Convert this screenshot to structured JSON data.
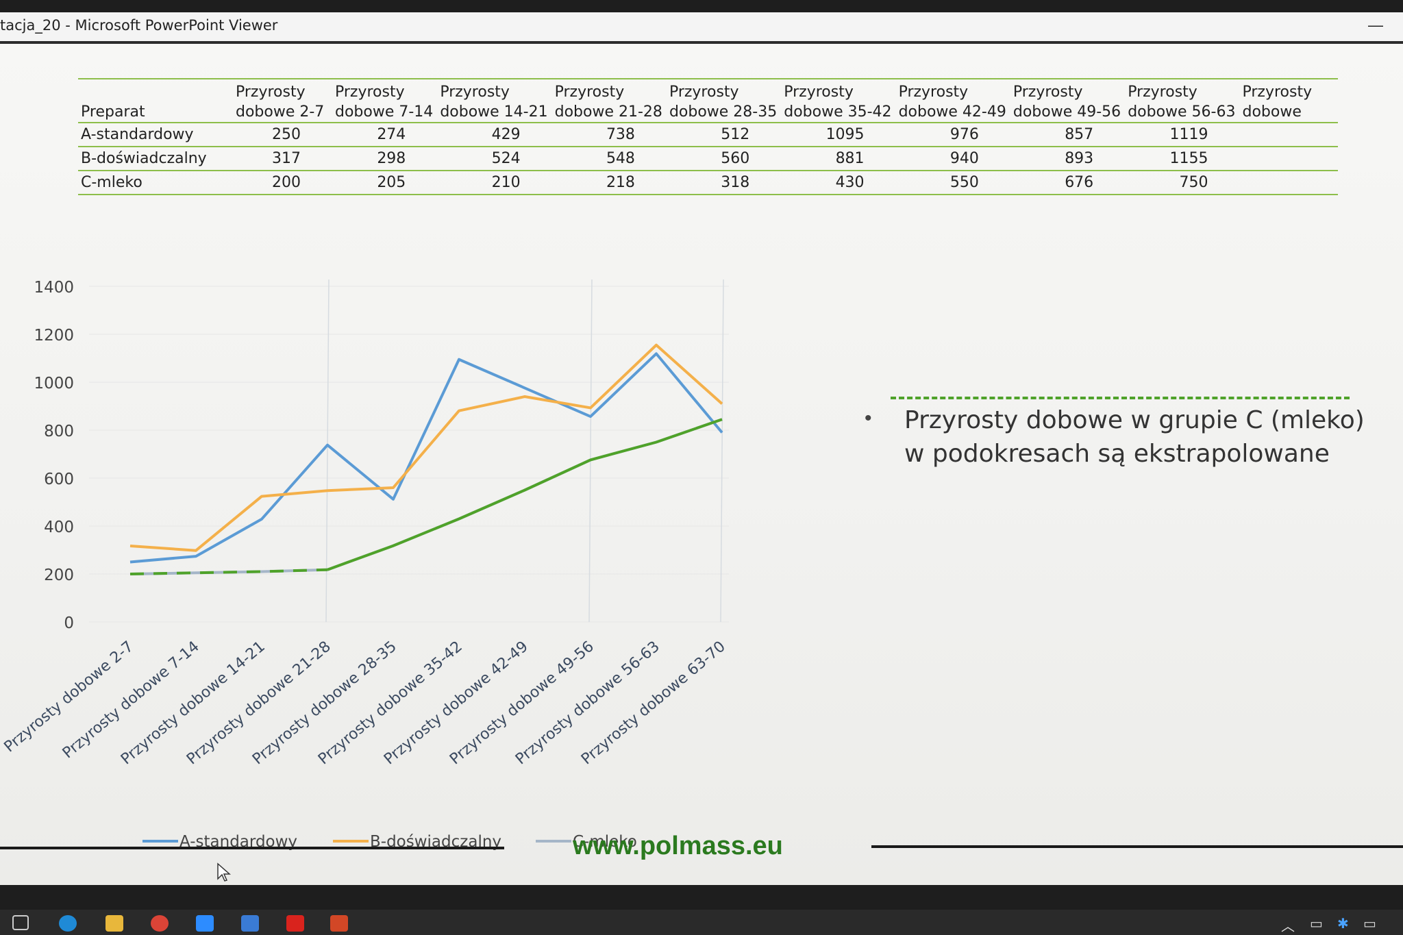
{
  "window": {
    "title": "tacja_20 - Microsoft PowerPoint Viewer",
    "minimize_glyph": "—"
  },
  "table": {
    "header_label": "Preparat",
    "columns": [
      [
        "Przyrosty",
        "dobowe 2-7"
      ],
      [
        "Przyrosty",
        "dobowe 7-14"
      ],
      [
        "Przyrosty",
        "dobowe 14-21"
      ],
      [
        "Przyrosty",
        "dobowe 21-28"
      ],
      [
        "Przyrosty",
        "dobowe 28-35"
      ],
      [
        "Przyrosty",
        "dobowe 35-42"
      ],
      [
        "Przyrosty",
        "dobowe 42-49"
      ],
      [
        "Przyrosty",
        "dobowe 49-56"
      ],
      [
        "Przyrosty",
        "dobowe 56-63"
      ],
      [
        "Przyrosty",
        "dobowe"
      ]
    ],
    "rows": [
      {
        "label": "A-standardowy",
        "values": [
          "250",
          "274",
          "429",
          "738",
          "512",
          "1095",
          "976",
          "857",
          "1119",
          ""
        ]
      },
      {
        "label": "B-doświadczalny",
        "values": [
          "317",
          "298",
          "524",
          "548",
          "560",
          "881",
          "940",
          "893",
          "1155",
          ""
        ]
      },
      {
        "label": "C-mleko",
        "values": [
          "200",
          "205",
          "210",
          "218",
          "318",
          "430",
          "550",
          "676",
          "750",
          ""
        ]
      }
    ]
  },
  "chart_data": {
    "type": "line",
    "categories": [
      "Przyrosty dobowe 2-7",
      "Przyrosty dobowe 7-14",
      "Przyrosty dobowe 14-21",
      "Przyrosty dobowe 21-28",
      "Przyrosty dobowe 28-35",
      "Przyrosty dobowe 35-42",
      "Przyrosty dobowe 42-49",
      "Przyrosty dobowe 49-56",
      "Przyrosty dobowe 56-63",
      "Przyrosty dobowe 63-70"
    ],
    "series": [
      {
        "name": "A-standardowy",
        "color": "#5b9bd5",
        "values": [
          250,
          274,
          429,
          738,
          512,
          1095,
          976,
          857,
          1119,
          790
        ]
      },
      {
        "name": "B-doświadczalny",
        "color": "#f4b04a",
        "values": [
          317,
          298,
          524,
          548,
          560,
          881,
          940,
          893,
          1155,
          910
        ]
      },
      {
        "name": "C-mleko",
        "color": "#a5b6c8",
        "values": [
          200,
          205,
          210,
          218,
          318,
          430,
          550,
          676,
          750,
          845
        ]
      }
    ],
    "overlay": {
      "color": "#4fa22a",
      "values": [
        200,
        205,
        210,
        218,
        318,
        430,
        550,
        676,
        750,
        845
      ],
      "dashed_until_index": 3
    },
    "yticks": [
      0,
      200,
      400,
      600,
      800,
      1000,
      1200,
      1400
    ],
    "ylim": [
      0,
      1400
    ],
    "ytick_labels": [
      "0",
      "200",
      "400",
      "600",
      "800",
      "1000",
      "1200",
      "1400"
    ],
    "legend_position": "bottom",
    "grid": "vertical lines"
  },
  "bullet": {
    "text_line1": "Przyrosty dobowe w grupie C (mleko)",
    "text_line2": "w podokresach są ekstrapolowane"
  },
  "footer": {
    "url": "www.polmass.eu"
  }
}
